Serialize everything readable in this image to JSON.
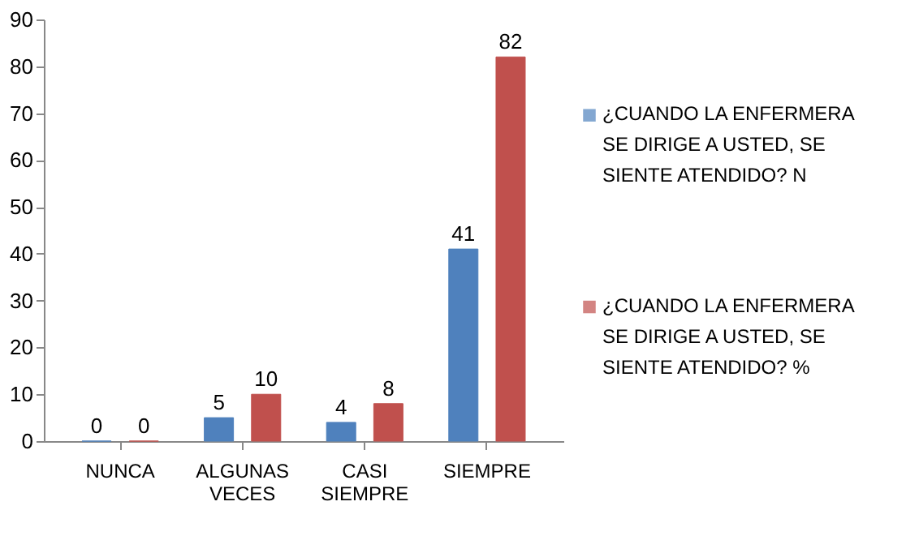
{
  "chart_data": {
    "type": "bar",
    "categories": [
      "NUNCA",
      "ALGUNAS VECES",
      "CASI SIEMPRE",
      "SIEMPRE"
    ],
    "series": [
      {
        "name": "¿CUANDO LA ENFERMERA SE DIRIGE A USTED, SE SIENTE ATENDIDO? N",
        "color": "#4f81bd",
        "values": [
          0,
          5,
          4,
          41
        ]
      },
      {
        "name": "¿CUANDO LA ENFERMERA SE DIRIGE A USTED, SE SIENTE ATENDIDO? %",
        "color": "#c0504d",
        "values": [
          0,
          10,
          8,
          82
        ]
      }
    ],
    "ylim": [
      0,
      90
    ],
    "yticks": [
      0,
      10,
      20,
      30,
      40,
      50,
      60,
      70,
      80,
      90
    ],
    "data_labels": true,
    "grid": false,
    "legend": "right"
  }
}
